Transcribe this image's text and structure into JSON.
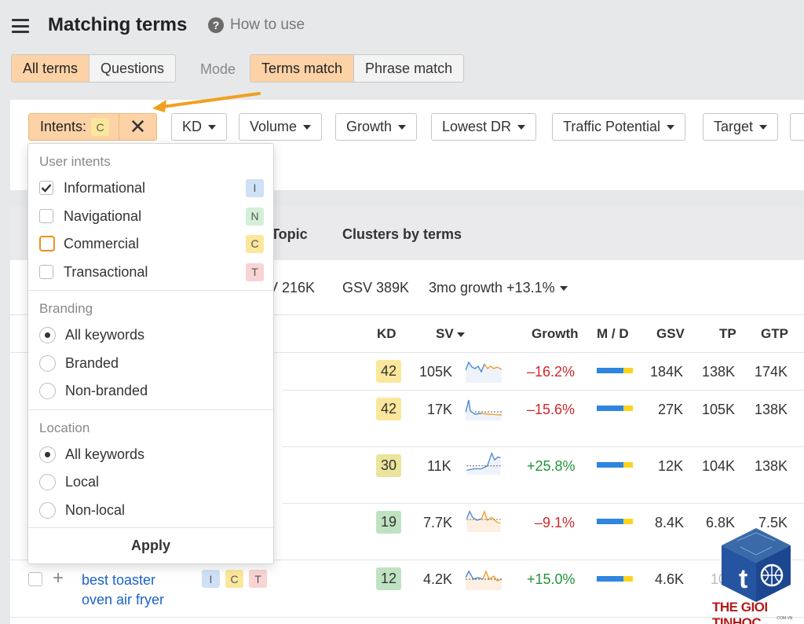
{
  "header": {
    "title": "Matching terms",
    "how_to_use": "How to use"
  },
  "term_tabs": [
    {
      "label": "All terms",
      "active": true
    },
    {
      "label": "Questions",
      "active": false
    }
  ],
  "mode": {
    "label": "Mode",
    "options": [
      {
        "label": "Terms match",
        "active": true
      },
      {
        "label": "Phrase match",
        "active": false
      }
    ]
  },
  "filters": {
    "intents_label": "Intents:",
    "intents_badge": "C",
    "buttons": [
      "KD",
      "Volume",
      "Growth",
      "Lowest DR",
      "Traffic Potential",
      "Target"
    ]
  },
  "dropdown": {
    "user_intents_title": "User intents",
    "intents": [
      {
        "label": "Informational",
        "badge": "I",
        "checked": true
      },
      {
        "label": "Navigational",
        "badge": "N",
        "checked": false
      },
      {
        "label": "Commercial",
        "badge": "C",
        "checked": false,
        "highlighted": true
      },
      {
        "label": "Transactional",
        "badge": "T",
        "checked": false
      }
    ],
    "branding_title": "Branding",
    "branding": [
      {
        "label": "All keywords",
        "selected": true
      },
      {
        "label": "Branded",
        "selected": false
      },
      {
        "label": "Non-branded",
        "selected": false
      }
    ],
    "location_title": "Location",
    "location": [
      {
        "label": "All keywords",
        "selected": true
      },
      {
        "label": "Local",
        "selected": false
      },
      {
        "label": "Non-local",
        "selected": false
      }
    ],
    "apply": "Apply"
  },
  "tabs": {
    "topic_partial": "Topic",
    "clusters": "Clusters by terms"
  },
  "stats": {
    "gsv_partial": "V 216K",
    "gsv": "GSV 389K",
    "growth": "3mo growth +13.1%"
  },
  "table": {
    "headers": {
      "kd": "KD",
      "sv": "SV",
      "growth": "Growth",
      "md": "M / D",
      "gsv": "GSV",
      "tp": "TP",
      "gtp": "GTP"
    },
    "rows": [
      {
        "kd": "42",
        "sv": "105K",
        "growth": "–16.2%",
        "gsv": "184K",
        "tp": "138K",
        "gtp": "174K"
      },
      {
        "kd": "42",
        "sv": "17K",
        "growth": "–15.6%",
        "gsv": "27K",
        "tp": "105K",
        "gtp": "138K"
      },
      {
        "kd": "30",
        "sv": "11K",
        "growth": "+25.8%",
        "gsv": "12K",
        "tp": "104K",
        "gtp": "138K"
      },
      {
        "kd": "19",
        "sv": "7.7K",
        "growth": "–9.1%",
        "gsv": "8.4K",
        "tp": "6.8K",
        "gtp": "7.5K"
      },
      {
        "kd": "12",
        "sv": "4.2K",
        "growth": "+15.0%",
        "gsv": "4.6K",
        "tp": "10K",
        "gtp": "1K"
      }
    ],
    "last_keyword_line1": "best toaster",
    "last_keyword_line2": "oven air fryer",
    "last_intent_badges": [
      "I",
      "C",
      "T"
    ],
    "md_colors": {
      "mobile": "#2e86e0",
      "desktop": "#ffd21e"
    }
  },
  "watermark": {
    "text": "THE GIOI TINHOC",
    "sub": ".COM.VN"
  },
  "colors": {
    "accent_orange": "#fcd2a6",
    "arrow": "#f0a020",
    "link": "#1a62c9",
    "negative": "#d1272b",
    "positive": "#22943b",
    "kd_yellow": "#fbe79b",
    "kd_olive": "#ebe49c",
    "kd_green": "#bfe3c2"
  }
}
